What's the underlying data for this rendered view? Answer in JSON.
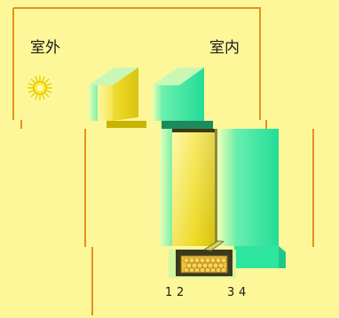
{
  "labels": {
    "outdoor": "室外",
    "indoor": "室内"
  },
  "numbers": [
    "1",
    "2",
    "3",
    "4"
  ],
  "colors": {
    "background": "#fdf79a",
    "frame_line": "#e8901a",
    "glass_yellow": "#f2e53a",
    "glass_yellow_dark": "#b8a400",
    "wall_green": "#2fe6a0",
    "wall_green_light": "#b9f7a8",
    "spacer_dark": "#333320",
    "desiccant": "#f5c13a"
  },
  "icons": [
    "sun-icon"
  ]
}
